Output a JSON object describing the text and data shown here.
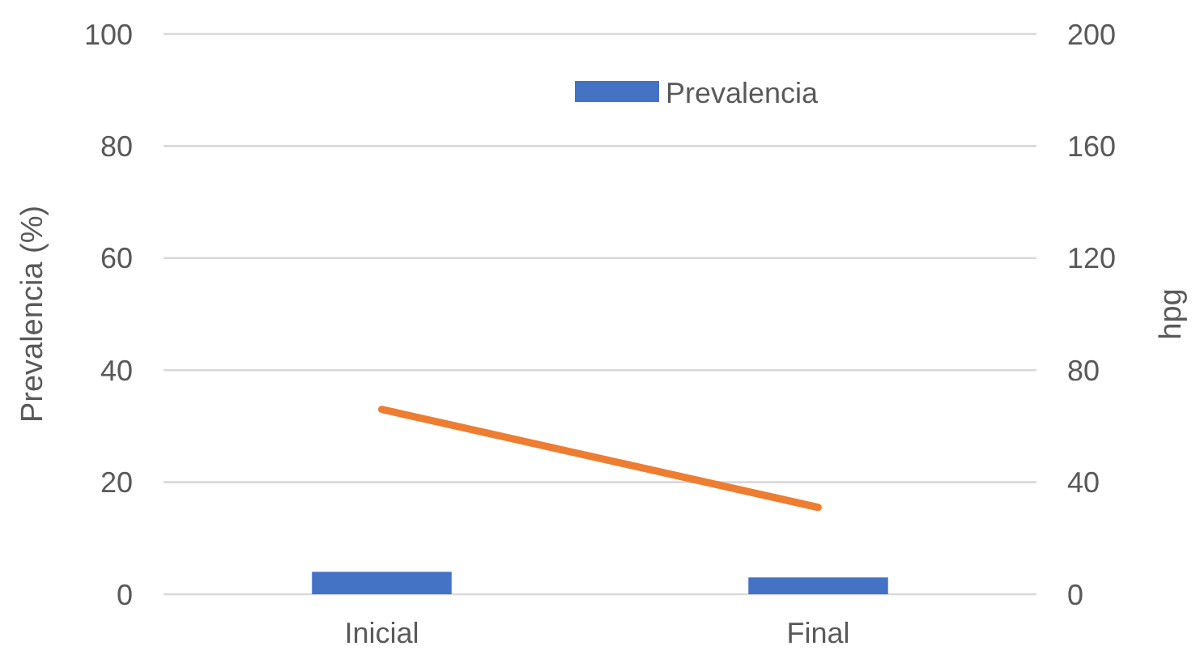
{
  "chart_data": {
    "type": "bar",
    "categories": [
      "Inicial",
      "Final"
    ],
    "ylabel": "Prevalencia (%)",
    "y2label": "hpg",
    "ylim": [
      0,
      100
    ],
    "yticks": [
      0,
      20,
      40,
      60,
      80,
      100
    ],
    "y2lim": [
      0,
      200
    ],
    "y2ticks": [
      0,
      40,
      80,
      120,
      160,
      200
    ],
    "grid": "y",
    "legend": "top",
    "series": [
      {
        "name": "Prevalencia",
        "color": "#4472c4",
        "values": [
          4,
          3
        ]
      },
      {
        "type": "line",
        "axis": "y2",
        "color": "#ed7d31",
        "values": [
          66,
          31
        ]
      }
    ]
  }
}
